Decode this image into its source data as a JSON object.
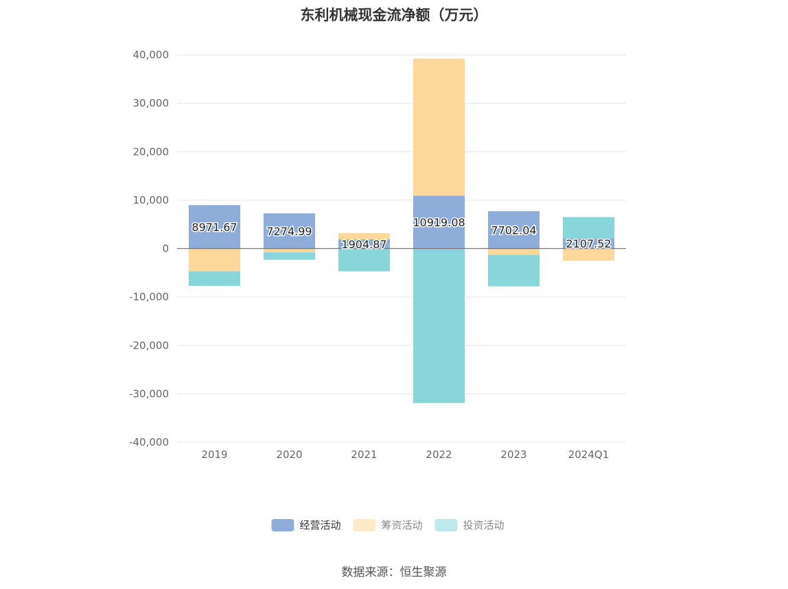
{
  "title": "东利机械现金流净额（万元）",
  "source": "数据来源：恒生聚源",
  "chart_data": {
    "type": "bar",
    "stacked": true,
    "categories": [
      "2019",
      "2020",
      "2021",
      "2022",
      "2023",
      "2024Q1"
    ],
    "series": [
      {
        "name": "经营活动",
        "color": "#8fadd9",
        "values": [
          8971.67,
          7274.99,
          1904.87,
          10919.08,
          7702.04,
          2107.52
        ]
      },
      {
        "name": "筹资活动",
        "color": "#fdd89b",
        "values": [
          -4700,
          -800,
          1300,
          28300,
          -1300,
          -2500
        ]
      },
      {
        "name": "投资活动",
        "color": "#88d5da",
        "values": [
          -3000,
          -1500,
          -4700,
          -31900,
          -6500,
          4400
        ]
      }
    ],
    "data_labels": [
      "8971.67",
      "7274.99",
      "1904.87",
      "10919.08",
      "7702.04",
      "2107.52"
    ],
    "yticks": [
      "40,000",
      "30,000",
      "20,000",
      "10,000",
      "0",
      "-10,000",
      "-20,000",
      "-30,000",
      "-40,000"
    ],
    "ylim": [
      -40000,
      40000
    ],
    "legend_position": "bottom",
    "grid": true
  }
}
